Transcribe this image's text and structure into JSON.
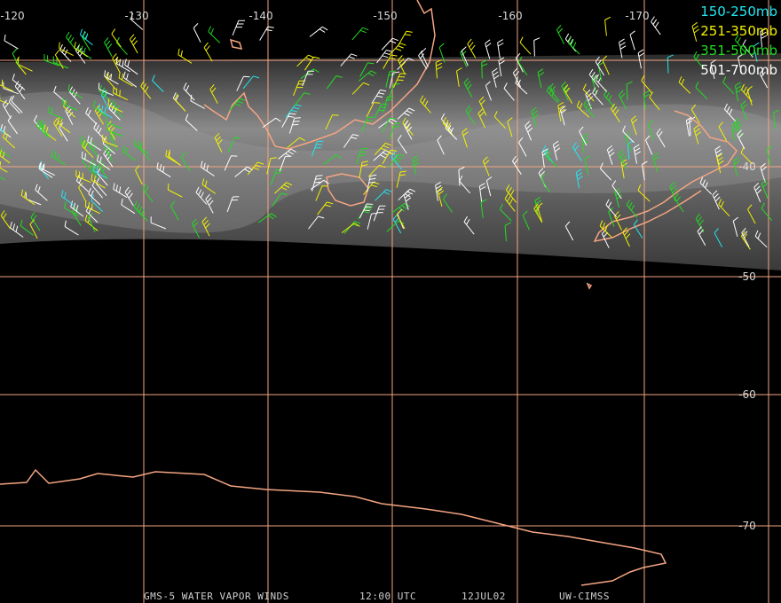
{
  "legend": [
    {
      "label": "150-250mb",
      "color": "#22e6f0"
    },
    {
      "label": "251-350mb",
      "color": "#f2f200"
    },
    {
      "label": "351-500mb",
      "color": "#22dd22"
    },
    {
      "label": "501-700mb",
      "color": "#ffffff"
    }
  ],
  "lon_labels": [
    "-120",
    "-130",
    "-140",
    "-150",
    "-160",
    "-170"
  ],
  "lat_labels": [
    "-40",
    "-50",
    "-60",
    "-70"
  ],
  "footer": [
    "GMS-5 WATER VAPOR WINDS",
    "12:00 UTC",
    "12JUL02",
    "UW-CIMSS"
  ]
}
